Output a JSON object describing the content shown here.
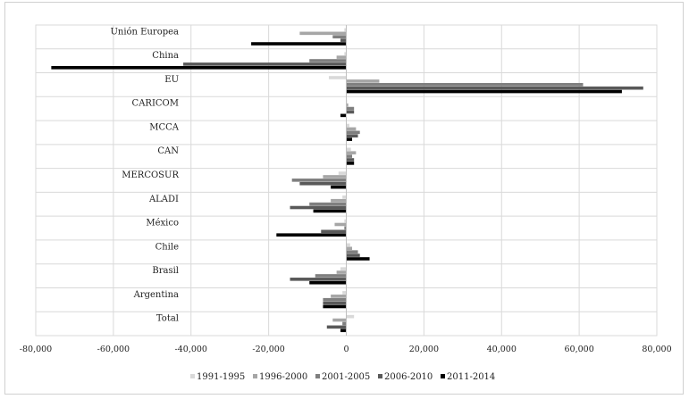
{
  "chart_data": {
    "type": "bar",
    "orientation": "horizontal",
    "title": "",
    "xlabel": "",
    "ylabel": "",
    "xlim": [
      -80000,
      80000
    ],
    "xticks": [
      -80000,
      -60000,
      -40000,
      -20000,
      0,
      20000,
      40000,
      60000,
      80000
    ],
    "xtick_labels": [
      "-80,000",
      "-60,000",
      "-40,000",
      "-20,000",
      "0",
      "20,000",
      "40,000",
      "60,000",
      "80,000"
    ],
    "grid": true,
    "legend_position": "bottom",
    "categories": [
      "Unión Europea",
      "China",
      "EU",
      "CARICOM",
      "MCCA",
      "CAN",
      "MERCOSUR",
      "ALADI",
      "México",
      "Chile",
      "Brasil",
      "Argentina",
      "Total"
    ],
    "series": [
      {
        "name": "1991-1995",
        "color": "#d9d9d9",
        "values": [
          -500,
          -500,
          -4500,
          200,
          800,
          1200,
          -2000,
          -1000,
          -500,
          1000,
          -1500,
          -1000,
          2000
        ]
      },
      {
        "name": "1996-2000",
        "color": "#a6a6a6",
        "values": [
          -12000,
          -2500,
          8500,
          500,
          2500,
          2500,
          -6000,
          -4000,
          -3000,
          1500,
          -2500,
          -4000,
          -3500
        ]
      },
      {
        "name": "2001-2005",
        "color": "#7f7f7f",
        "values": [
          -3500,
          -9500,
          61000,
          2000,
          3500,
          1500,
          -14000,
          -9500,
          -500,
          3000,
          -8000,
          -6000,
          -1000
        ]
      },
      {
        "name": "2006-2010",
        "color": "#595959",
        "values": [
          -1500,
          -42000,
          76500,
          2000,
          3000,
          2000,
          -12000,
          -14500,
          -6500,
          3500,
          -14500,
          -6000,
          -5000
        ]
      },
      {
        "name": "2011-2014",
        "color": "#000000",
        "values": [
          -24500,
          -76000,
          71000,
          -1500,
          1500,
          2000,
          -4000,
          -8500,
          -18000,
          6000,
          -9500,
          -6000,
          -1500
        ]
      }
    ]
  }
}
